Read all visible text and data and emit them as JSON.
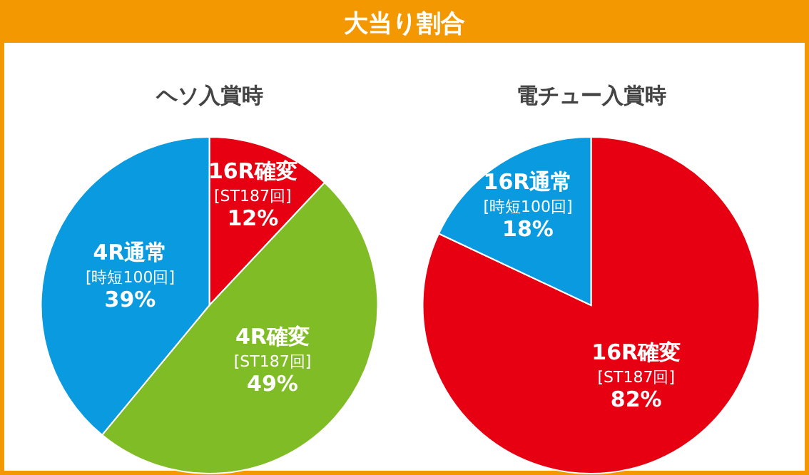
{
  "chart_data": [
    {
      "type": "pie",
      "title": "ヘソ入賞時",
      "annotations": [
        "大当り割合"
      ],
      "categories": [
        "16R確変\n[ST187回]",
        "4R確変\n[ST187回]",
        "4R通常\n[時短100回]"
      ],
      "values": [
        12,
        49,
        39
      ],
      "value_labels": [
        "12%",
        "49%",
        "39%"
      ],
      "colors": [
        "#e60012",
        "#80bc26",
        "#0a9ae0"
      ]
    },
    {
      "type": "pie",
      "title": "電チュー入賞時",
      "categories": [
        "16R確変\n[ST187回]",
        "16R通常\n[時短100回]"
      ],
      "values": [
        82,
        18
      ],
      "value_labels": [
        "82%",
        "18%"
      ],
      "colors": [
        "#e60012",
        "#0a9ae0"
      ]
    }
  ]
}
